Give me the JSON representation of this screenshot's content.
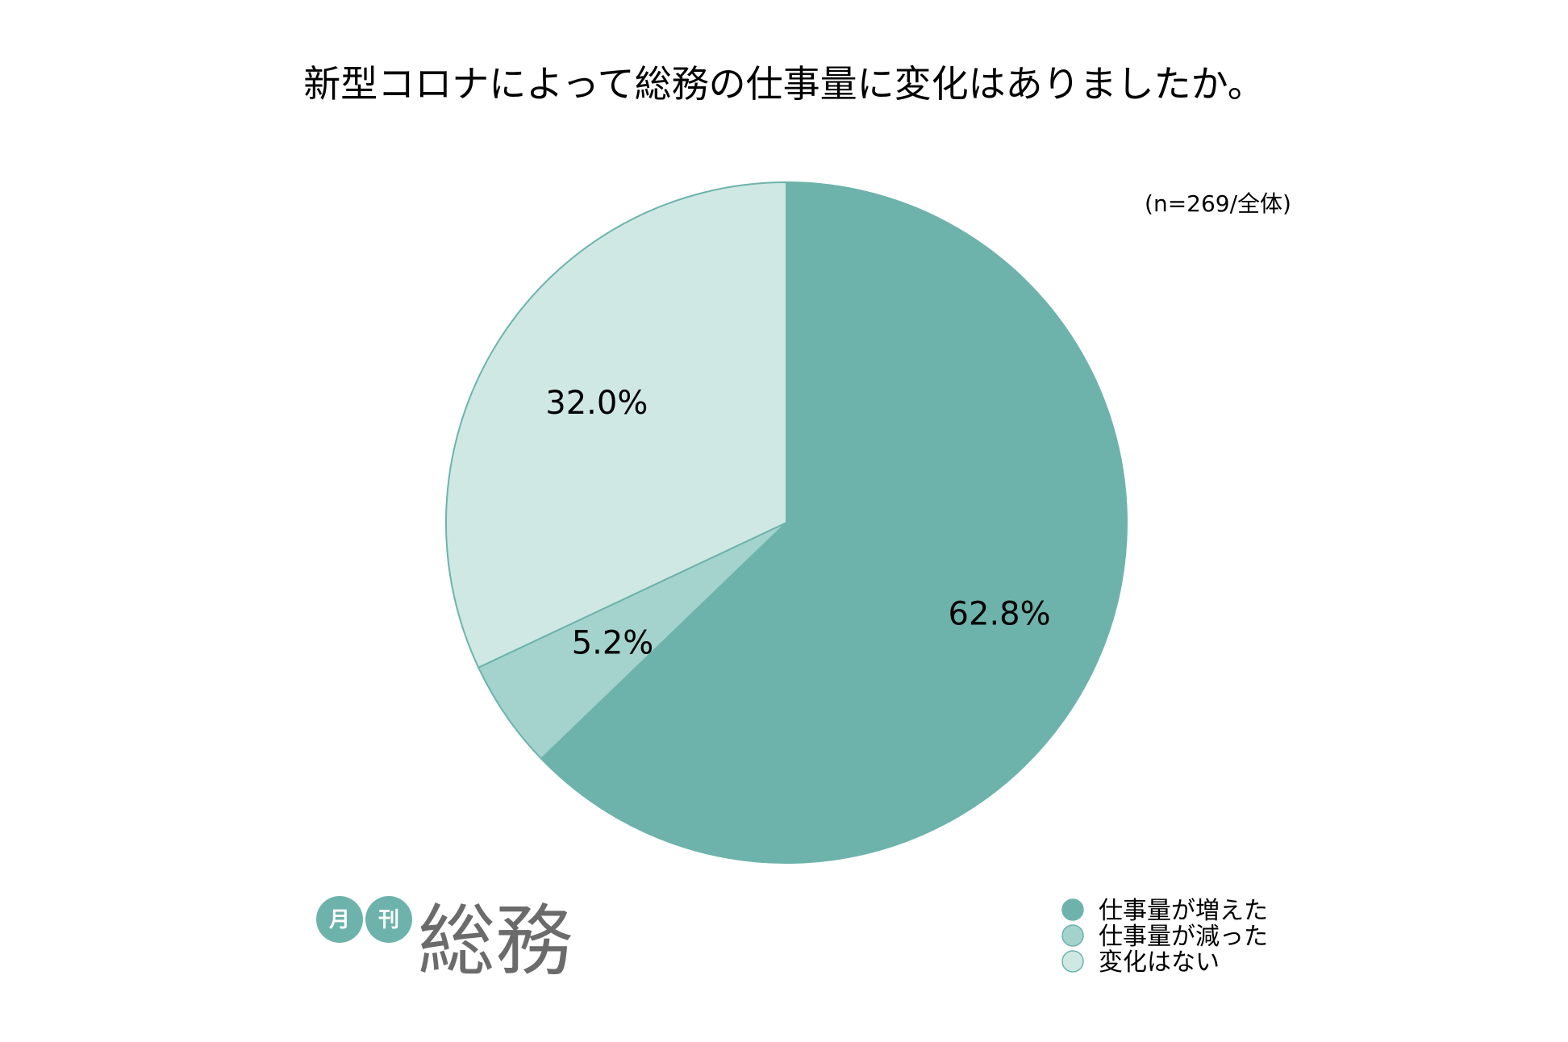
{
  "chart_data": {
    "type": "pie",
    "title": "新型コロナによって総務の仕事量に変化はありましたか。",
    "note": "(n=269/全体)",
    "slices": [
      {
        "label": "仕事量が増えた",
        "value": 62.8,
        "display": "62.8%",
        "color": "#6db3ab"
      },
      {
        "label": "仕事量が減った",
        "value": 5.2,
        "display": "5.2%",
        "color": "#a4d3cd"
      },
      {
        "label": "変化はない",
        "value": 32.0,
        "display": "32.0%",
        "color": "#cfe8e4"
      }
    ],
    "start_angle": "12 o'clock, clockwise",
    "legend_position": "bottom-right",
    "slice_border_color": "#6db3ab"
  },
  "logo": {
    "month": "月",
    "publication": "刊",
    "name": "総務",
    "badge_color": "#6db3ab",
    "name_color": "#6b6b6b"
  }
}
